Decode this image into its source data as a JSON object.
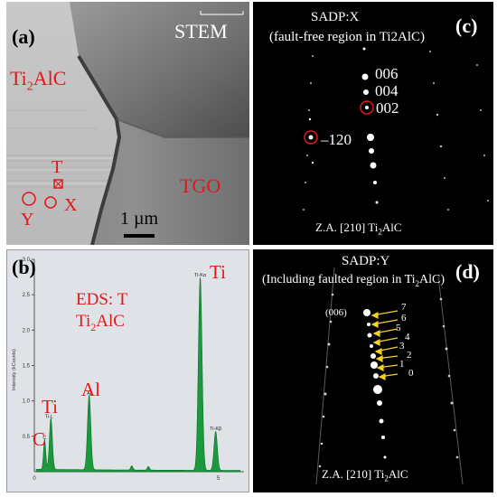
{
  "panel_a": {
    "letter": "(a)",
    "mode": "STEM",
    "phase_top_base": "Ti",
    "phase_top_sub": "2",
    "phase_top_rest": "AlC",
    "phase_right": "TGO",
    "point_t": "T",
    "point_x": "X",
    "point_y": "Y",
    "scale_bar": "1 µm",
    "marker_color": "#e01818"
  },
  "panel_b": {
    "letter": "(b)",
    "title_line1": "EDS: T",
    "phase_base": "Ti",
    "phase_sub": "2",
    "phase_rest": "AlC",
    "ylabel": "Intensity (kCounts)",
    "label_color": "#e01818"
  },
  "panel_c": {
    "letter": "(c)",
    "title_line1": "SADP:X",
    "title_line2": "(fault-free region in Ti2AlC)",
    "spots": [
      "006",
      "004",
      "002",
      "–120"
    ],
    "zone_prefix": "Z.A. [210] Ti",
    "zone_sub": "2",
    "zone_rest": "AlC"
  },
  "panel_d": {
    "letter": "(d)",
    "title_line1": "SADP:Y",
    "title_line2_a": "(Including faulted region in Ti",
    "title_line2_sub": "2",
    "title_line2_b": "AlC)",
    "ref_spot": "(006)",
    "numbers": [
      "7",
      "6",
      "5",
      "4",
      "3",
      "2",
      "1",
      "0"
    ],
    "zone_prefix": "Z.A. [210] Ti",
    "zone_sub": "2",
    "zone_rest": "AlC",
    "arrow_color": "#f2d21b"
  },
  "chart_data": {
    "type": "line",
    "title": "EDS: T Ti2AlC",
    "ylabel": "Intensity (kCounts)",
    "xlim": [
      0,
      5.7
    ],
    "ylim": [
      0,
      3.0
    ],
    "x_ticks": [
      "0",
      "5"
    ],
    "y_ticks": [
      "0.5",
      "1.0",
      "1.5",
      "2.0",
      "2.5",
      "3.0"
    ],
    "peaks": [
      {
        "label": "C",
        "element_label": "C",
        "x": 0.28,
        "y": 0.42
      },
      {
        "label": "Ti-L",
        "element_label": "Ti",
        "x": 0.45,
        "y": 0.72
      },
      {
        "label": "Al",
        "element_label": "Al",
        "x": 1.49,
        "y": 1.05
      },
      {
        "label": "Ti-Kα",
        "element_label": "Ti",
        "x": 4.51,
        "y": 2.72
      },
      {
        "label": "Ti-Kβ",
        "element_label": "",
        "x": 4.93,
        "y": 0.55
      }
    ],
    "grid": false,
    "fill_color": "#1a9a3c"
  }
}
